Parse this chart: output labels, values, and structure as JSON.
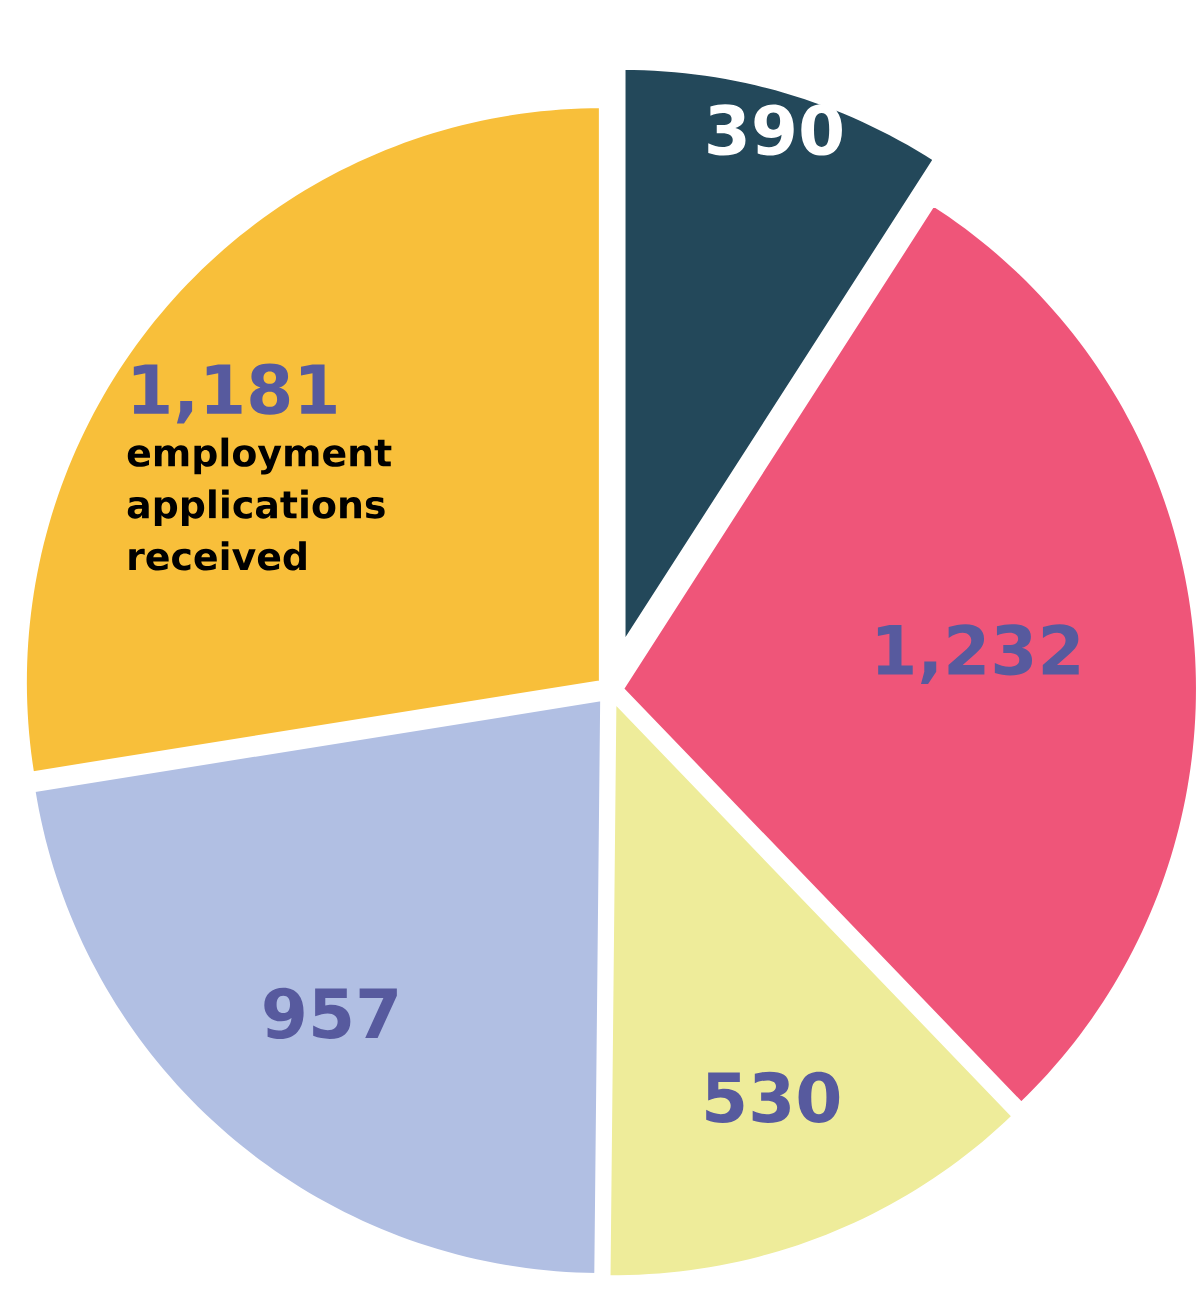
{
  "chart_data": {
    "type": "pie",
    "categories": [
      null,
      null,
      null,
      null,
      null
    ],
    "values": [
      390,
      1232,
      530,
      957,
      1181
    ],
    "colors": [
      "#23485a",
      "#ef5579",
      "#eeec9a",
      "#b1bfe3",
      "#f8bf3a"
    ],
    "value_labels": [
      "390",
      "1,232",
      "530",
      "957",
      "1,181"
    ],
    "annotations": [
      "employment applications received"
    ]
  }
}
